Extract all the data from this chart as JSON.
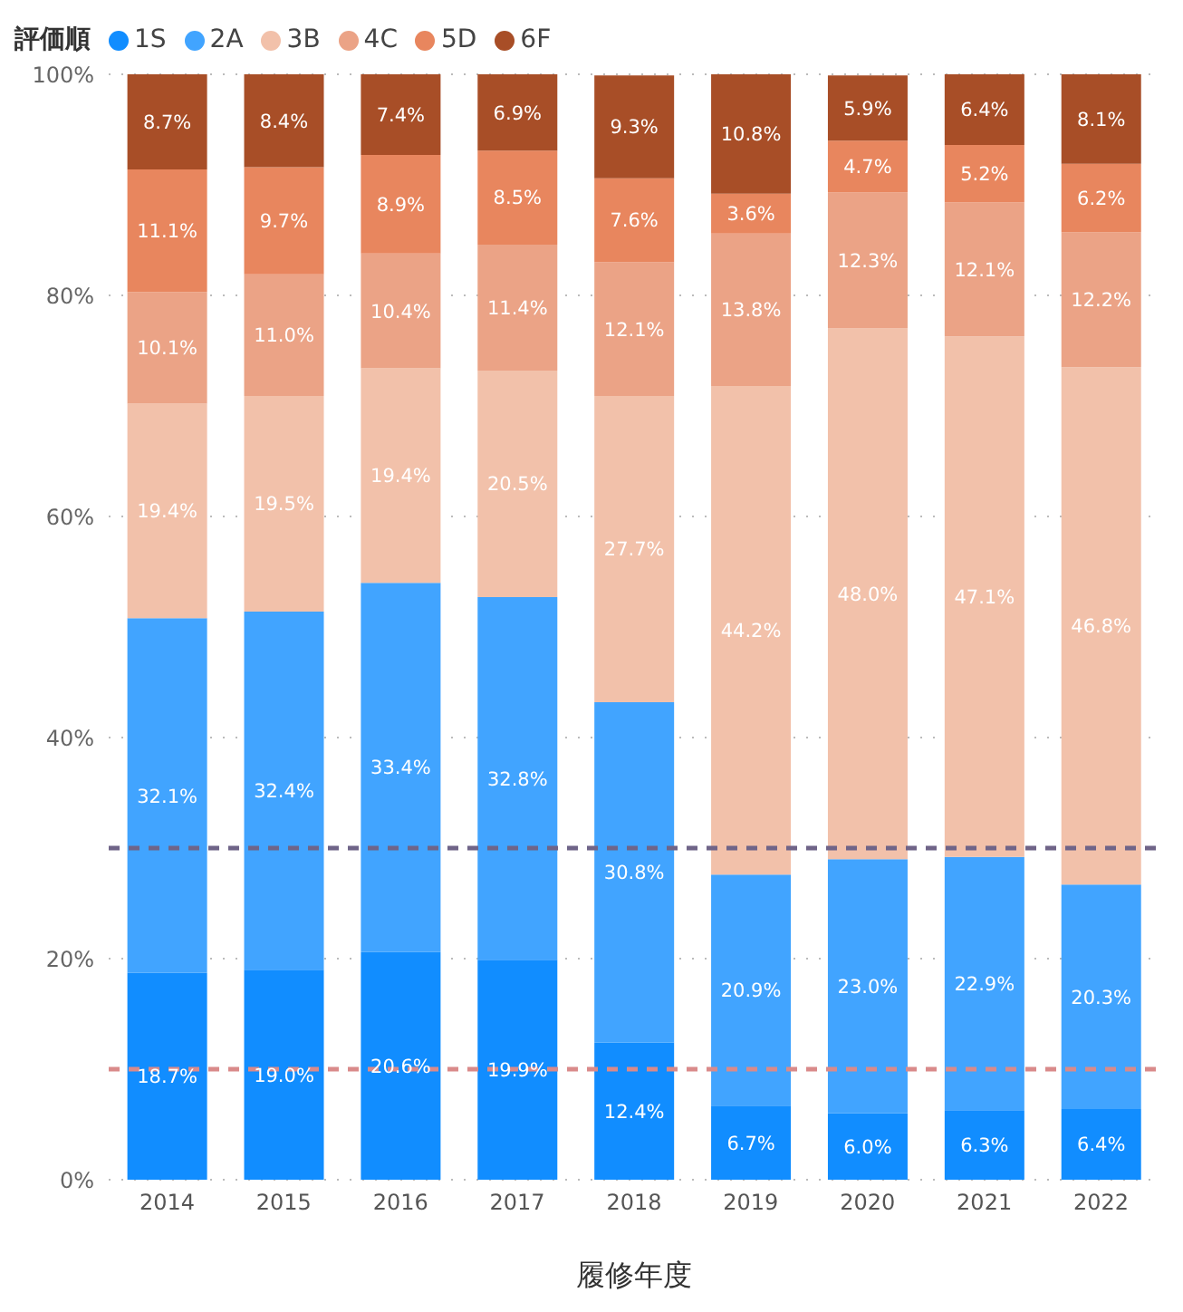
{
  "chart_data": {
    "type": "bar",
    "stacked": true,
    "legend_title": "評価順",
    "xlabel": "履修年度",
    "categories": [
      "2014",
      "2015",
      "2016",
      "2017",
      "2018",
      "2019",
      "2020",
      "2021",
      "2022"
    ],
    "series": [
      {
        "name": "1S",
        "color": "#118dff",
        "values": [
          18.7,
          19.0,
          20.6,
          19.9,
          12.4,
          6.7,
          6.0,
          6.3,
          6.4
        ],
        "value_labels": [
          "18.7%",
          "19.0%",
          "20.6%",
          "19.9%",
          "12.4%",
          "6.7%",
          "6.0%",
          "6.3%",
          "6.4%"
        ]
      },
      {
        "name": "2A",
        "color": "#41a4ff",
        "values": [
          32.1,
          32.4,
          33.4,
          32.8,
          30.8,
          20.9,
          23.0,
          22.9,
          20.3
        ],
        "value_labels": [
          "32.1%",
          "32.4%",
          "33.4%",
          "32.8%",
          "30.8%",
          "20.9%",
          "23.0%",
          "22.9%",
          "20.3%"
        ]
      },
      {
        "name": "3B",
        "color": "#f2c1aa",
        "values": [
          19.4,
          19.5,
          19.4,
          20.5,
          27.7,
          44.2,
          48.0,
          47.1,
          46.8
        ],
        "value_labels": [
          "19.4%",
          "19.5%",
          "19.4%",
          "20.5%",
          "27.7%",
          "44.2%",
          "48.0%",
          "47.1%",
          "46.8%"
        ]
      },
      {
        "name": "4C",
        "color": "#eba386",
        "values": [
          10.1,
          11.0,
          10.4,
          11.4,
          12.1,
          13.8,
          12.3,
          12.1,
          12.2
        ],
        "value_labels": [
          "10.1%",
          "11.0%",
          "10.4%",
          "11.4%",
          "12.1%",
          "13.8%",
          "12.3%",
          "12.1%",
          "12.2%"
        ]
      },
      {
        "name": "5D",
        "color": "#e8865e",
        "values": [
          11.1,
          9.7,
          8.9,
          8.5,
          7.6,
          3.6,
          4.7,
          5.2,
          6.2
        ],
        "value_labels": [
          "11.1%",
          "9.7%",
          "8.9%",
          "8.5%",
          "7.6%",
          "3.6%",
          "4.7%",
          "5.2%",
          "6.2%"
        ]
      },
      {
        "name": "6F",
        "color": "#a84e27",
        "values": [
          8.7,
          8.4,
          7.4,
          6.9,
          9.3,
          10.8,
          5.9,
          6.4,
          8.1
        ],
        "value_labels": [
          "8.7%",
          "8.4%",
          "7.4%",
          "6.9%",
          "9.3%",
          "10.8%",
          "5.9%",
          "6.4%",
          "8.1%"
        ]
      }
    ],
    "ylim": [
      0,
      100
    ],
    "yticks": [
      {
        "value": 0,
        "label": "0%"
      },
      {
        "value": 20,
        "label": "20%"
      },
      {
        "value": 40,
        "label": "40%"
      },
      {
        "value": 60,
        "label": "60%"
      },
      {
        "value": 80,
        "label": "80%"
      },
      {
        "value": 100,
        "label": "100%"
      }
    ],
    "ref_lines": [
      {
        "axis": "y",
        "value": 30,
        "color": "#6f6488",
        "line_style": "dashed"
      },
      {
        "axis": "y",
        "value": 10,
        "color": "#d98a8a",
        "line_style": "dashed"
      }
    ],
    "grid": "y",
    "legend": "top left"
  }
}
